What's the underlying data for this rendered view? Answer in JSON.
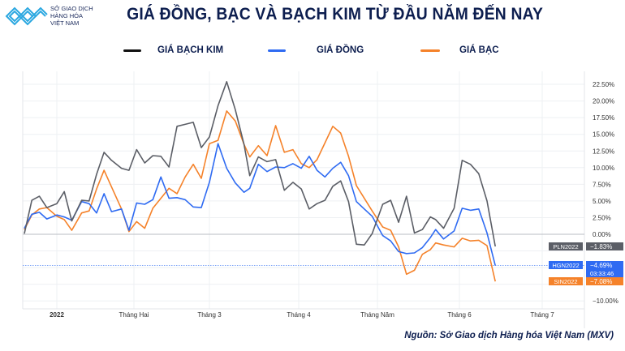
{
  "header": {
    "brand_lines": [
      "SỞ GIAO DỊCH",
      "HÀNG HÓA",
      "VIỆT NAM"
    ],
    "title": "GIÁ ĐỒNG, BẠC VÀ BẠCH KIM TỪ ĐẦU NĂM ĐẾN NAY"
  },
  "source": "Nguồn: Sở Giao dịch Hàng hóa Việt Nam (MXV)",
  "chart_data": {
    "type": "line",
    "title": "GIÁ ĐỒNG, BẠC VÀ BẠCH KIM TỪ ĐẦU NĂM ĐẾN NAY",
    "xlabel": "",
    "ylabel": "",
    "y_unit": "%",
    "y_axis_position": "right",
    "ylim": [
      -11.5,
      24
    ],
    "y_ticks": [
      22.5,
      20,
      17.5,
      15,
      12.5,
      10,
      7.5,
      5,
      2.5,
      0,
      -10
    ],
    "y_tick_labels": [
      "22.50%",
      "20.00%",
      "17.50%",
      "15.00%",
      "12.50%",
      "10.00%",
      "7.50%",
      "5.00%",
      "2.50%",
      "0.00%",
      "−10.00%"
    ],
    "x_ticks": [
      {
        "date": "2022-01-01",
        "label": "2022"
      },
      {
        "date": "2022-02-01",
        "label": "Tháng Hai"
      },
      {
        "date": "2022-03-01",
        "label": "Tháng 3"
      },
      {
        "date": "2022-04-01",
        "label": "Tháng 4"
      },
      {
        "date": "2022-05-01",
        "label": "Tháng Năm"
      },
      {
        "date": "2022-06-01",
        "label": "Tháng 6"
      },
      {
        "date": "2022-07-01",
        "label": "Tháng 7"
      }
    ],
    "grid": true,
    "legend_position": "top",
    "x": [
      "2021-12-19",
      "2021-12-22",
      "2021-12-25",
      "2021-12-28",
      "2022-01-01",
      "2022-01-04",
      "2022-01-07",
      "2022-01-11",
      "2022-01-14",
      "2022-01-17",
      "2022-01-20",
      "2022-01-23",
      "2022-01-27",
      "2022-01-30",
      "2022-02-02",
      "2022-02-05",
      "2022-02-08",
      "2022-02-11",
      "2022-02-14",
      "2022-02-17",
      "2022-02-20",
      "2022-02-23",
      "2022-02-26",
      "2022-03-01",
      "2022-03-04",
      "2022-03-07",
      "2022-03-10",
      "2022-03-13",
      "2022-03-15",
      "2022-03-18",
      "2022-03-21",
      "2022-03-24",
      "2022-03-27",
      "2022-03-30",
      "2022-04-02",
      "2022-04-05",
      "2022-04-08",
      "2022-04-11",
      "2022-04-14",
      "2022-04-17",
      "2022-04-20",
      "2022-04-23",
      "2022-04-26",
      "2022-04-29",
      "2022-05-03",
      "2022-05-06",
      "2022-05-09",
      "2022-05-12",
      "2022-05-15",
      "2022-05-18",
      "2022-05-21",
      "2022-05-23",
      "2022-05-26",
      "2022-05-30",
      "2022-06-02",
      "2022-06-05",
      "2022-06-08",
      "2022-06-11",
      "2022-06-14"
    ],
    "series": [
      {
        "name": "GIÁ BẠCH KIM",
        "symbol": "PLN2022",
        "last_label": "−1.83%",
        "color": "#5b5e66",
        "values": [
          0.1,
          5.1,
          5.7,
          4.0,
          4.6,
          6.4,
          2.0,
          5.1,
          5.0,
          9.0,
          12.3,
          11.1,
          9.9,
          9.6,
          12.7,
          10.7,
          11.8,
          11.7,
          10.1,
          16.2,
          16.5,
          16.8,
          13.0,
          14.6,
          19.3,
          22.9,
          18.7,
          13.5,
          8.8,
          11.6,
          10.9,
          11.2,
          6.6,
          7.8,
          6.8,
          3.8,
          4.6,
          5.1,
          7.2,
          8.0,
          4.9,
          -1.5,
          -1.6,
          0.1,
          4.5,
          5.1,
          1.8,
          5.7,
          0.2,
          0.7,
          2.6,
          2.2,
          0.9,
          3.9,
          11.1,
          10.5,
          9.1,
          5.0,
          -1.83
        ]
      },
      {
        "name": "GIÁ ĐỒNG",
        "symbol": "HGN2022",
        "last_label": "−4.69%",
        "time_label": "03:33:46",
        "color": "#2f6bf2",
        "values": [
          0.9,
          3.0,
          3.3,
          2.3,
          2.9,
          2.6,
          2.1,
          4.9,
          4.6,
          3.2,
          6.1,
          3.4,
          3.8,
          0.6,
          4.7,
          4.5,
          5.2,
          8.6,
          5.4,
          5.5,
          5.2,
          4.1,
          4.0,
          7.8,
          13.6,
          9.9,
          7.7,
          6.3,
          6.9,
          10.5,
          9.4,
          10.1,
          10.0,
          10.6,
          9.9,
          11.7,
          9.6,
          8.6,
          9.9,
          10.8,
          8.8,
          4.9,
          3.8,
          2.7,
          -0.2,
          -1.0,
          -2.6,
          -2.9,
          -2.8,
          -2.0,
          -0.5,
          0.7,
          -0.7,
          0.5,
          3.9,
          3.6,
          3.8,
          0.2,
          -4.69
        ]
      },
      {
        "name": "GIÁ BẠC",
        "symbol": "SIN2022",
        "last_label": "−7.08%",
        "color": "#f5822a",
        "values": [
          0.7,
          2.9,
          3.8,
          4.0,
          2.7,
          2.2,
          0.6,
          3.2,
          3.5,
          6.8,
          9.6,
          7.1,
          3.8,
          0.4,
          1.9,
          0.9,
          3.9,
          5.4,
          6.9,
          6.1,
          8.6,
          10.5,
          8.4,
          13.6,
          14.1,
          18.5,
          17.0,
          13.5,
          11.6,
          13.3,
          11.8,
          16.3,
          12.3,
          12.7,
          10.6,
          10.0,
          11.2,
          13.7,
          16.2,
          15.2,
          11.7,
          7.3,
          5.4,
          3.5,
          1.1,
          0.6,
          -1.9,
          -6.0,
          -5.4,
          -3.0,
          -2.3,
          -1.3,
          -1.6,
          -1.9,
          -0.6,
          -1.0,
          -0.9,
          -1.7,
          -7.08
        ]
      }
    ]
  }
}
